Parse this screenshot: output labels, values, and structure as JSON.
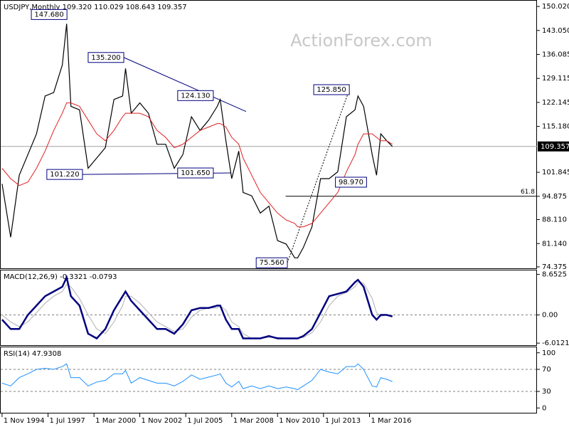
{
  "chart_data": [
    {
      "type": "line",
      "title": "USDJPY,Monthly  109.320 110.029 108.643 109.357",
      "watermark": "ActionForex.com",
      "x": [
        1994.83,
        1995.33,
        1995.83,
        1996.33,
        1996.83,
        1997.33,
        1997.83,
        1998.33,
        1998.58,
        1998.83,
        1999.33,
        1999.83,
        2000.33,
        2000.83,
        2001.33,
        2001.83,
        2002.0,
        2002.33,
        2002.83,
        2003.33,
        2003.83,
        2004.33,
        2004.83,
        2005.33,
        2005.83,
        2006.33,
        2006.83,
        2007.33,
        2007.5,
        2007.83,
        2008.17,
        2008.58,
        2008.83,
        2009.33,
        2009.83,
        2010.33,
        2010.83,
        2011.33,
        2011.83,
        2012.0,
        2012.33,
        2012.83,
        2013.33,
        2013.83,
        2014.33,
        2014.83,
        2015.33,
        2015.5,
        2015.83,
        2016.33,
        2016.58,
        2016.83,
        2017.17,
        2017.5
      ],
      "series": [
        {
          "name": "Close",
          "color": "#000000",
          "values": [
            98.5,
            83,
            101,
            107,
            113,
            124,
            125,
            133,
            145,
            121,
            120,
            103,
            106,
            109,
            123,
            124,
            132,
            119,
            122,
            119,
            110,
            110,
            103,
            107,
            118,
            114,
            117,
            121,
            123,
            111,
            100,
            108,
            96,
            95,
            90,
            92,
            82,
            81,
            77,
            77,
            80,
            86,
            100,
            100,
            102,
            118,
            120,
            124,
            121,
            107,
            101,
            113,
            111,
            109.357
          ]
        },
        {
          "name": "MA",
          "color": "#e02020",
          "values": [
            103,
            100,
            98,
            99,
            103,
            108,
            114,
            119,
            122,
            122,
            121,
            117,
            113,
            111,
            114,
            118,
            119,
            119,
            119,
            118,
            114,
            112,
            109,
            110,
            112,
            114,
            115,
            116,
            116,
            115,
            112,
            110,
            106,
            101,
            96,
            93,
            90,
            88,
            87,
            86,
            86,
            87,
            90,
            93,
            96,
            102,
            107,
            110,
            113,
            113,
            112,
            111,
            111,
            110
          ]
        }
      ],
      "ylim": [
        73.75,
        151.69
      ],
      "yticks": [
        {
          "value": 150.02,
          "label": "150.020"
        },
        {
          "value": 143.05,
          "label": "143.050"
        },
        {
          "value": 136.085,
          "label": "136.085"
        },
        {
          "value": 129.115,
          "label": "129.115"
        },
        {
          "value": 122.145,
          "label": "122.145"
        },
        {
          "value": 115.18,
          "label": "115.180"
        },
        {
          "value": 101.845,
          "label": "101.845"
        },
        {
          "value": 94.875,
          "label": "94.875"
        },
        {
          "value": 88.11,
          "label": "88.110"
        },
        {
          "value": 81.14,
          "label": "81.140"
        },
        {
          "value": 74.375,
          "label": "74.375"
        }
      ],
      "price_line": {
        "value": 109.357,
        "label": "109.357"
      },
      "fib": {
        "ratio": 61.8,
        "price": 94.9,
        "x_start": 2011.3
      },
      "annotations": [
        {
          "x": 1998.6,
          "value": 147.68,
          "label": "147.680"
        },
        {
          "x": 2001.9,
          "value": 135.2,
          "label": "135.200"
        },
        {
          "x": 2007.1,
          "value": 124.13,
          "label": "124.130"
        },
        {
          "x": 1999.5,
          "value": 101.22,
          "label": "101.220"
        },
        {
          "x": 2007.1,
          "value": 101.65,
          "label": "101.650"
        },
        {
          "x": 2015.0,
          "value": 125.85,
          "label": "125.850"
        },
        {
          "x": 2016.0,
          "value": 98.97,
          "label": "98.970"
        },
        {
          "x": 2011.4,
          "value": 75.56,
          "label": "75.560"
        }
      ],
      "trendlines": [
        {
          "x": [
            2001.9,
            2009.0
          ],
          "y": [
            135.2,
            119.5
          ],
          "style": "solid",
          "color": "#000080"
        },
        {
          "x": [
            1999.5,
            2008.1
          ],
          "y": [
            101.22,
            101.65
          ],
          "style": "solid",
          "color": "#000080"
        },
        {
          "x": [
            2011.4,
            2015.0
          ],
          "y": [
            75.56,
            125.85
          ],
          "style": "dotted",
          "color": "#000000"
        }
      ]
    },
    {
      "type": "line",
      "title": "MACD(12,26,9) -0.3321 -0.0793",
      "x": [
        1994.83,
        1995.33,
        1995.83,
        1996.33,
        1996.83,
        1997.33,
        1997.83,
        1998.33,
        1998.58,
        1998.83,
        1999.33,
        1999.83,
        2000.33,
        2000.83,
        2001.33,
        2001.83,
        2002.0,
        2002.33,
        2002.83,
        2003.33,
        2003.83,
        2004.33,
        2004.83,
        2005.33,
        2005.83,
        2006.33,
        2006.83,
        2007.33,
        2007.5,
        2007.83,
        2008.17,
        2008.58,
        2008.83,
        2009.33,
        2009.83,
        2010.33,
        2010.83,
        2011.33,
        2011.83,
        2012.0,
        2012.33,
        2012.83,
        2013.33,
        2013.83,
        2014.33,
        2014.83,
        2015.33,
        2015.5,
        2015.83,
        2016.33,
        2016.58,
        2016.83,
        2017.17,
        2017.5
      ],
      "series": [
        {
          "name": "Signal",
          "color": "#b0b0b0",
          "values": [
            0,
            -1.5,
            -2.5,
            -1.5,
            0.5,
            2.5,
            4,
            5,
            6.5,
            6,
            3.5,
            0,
            -3,
            -4,
            -1.5,
            2,
            4,
            4,
            2.5,
            0.5,
            -1.5,
            -2.5,
            -3.5,
            -3,
            -0.5,
            1,
            1.5,
            1.5,
            2,
            1,
            -1.5,
            -2.5,
            -4,
            -5,
            -5,
            -4.8,
            -4.8,
            -5,
            -5,
            -5,
            -4.8,
            -3.8,
            -1.5,
            2,
            4,
            4.8,
            6,
            7,
            6.8,
            3.5,
            0.5,
            -0.3,
            0,
            -0.0793
          ]
        },
        {
          "name": "MACD",
          "color": "#000080",
          "values": [
            -1,
            -3,
            -3,
            0,
            2,
            4,
            5,
            6,
            8,
            4,
            2,
            -4,
            -5,
            -3,
            1,
            4,
            5,
            3,
            1,
            -1,
            -3,
            -3,
            -4,
            -2,
            1,
            1.5,
            1.5,
            2,
            2,
            -1,
            -3,
            -3,
            -5,
            -5,
            -5,
            -4.5,
            -5,
            -5,
            -5,
            -5,
            -4.5,
            -3,
            0.5,
            4,
            4.5,
            5,
            7,
            7.5,
            6,
            0,
            -1,
            0,
            0,
            -0.3321
          ]
        }
      ],
      "ylim": [
        -6.6,
        9.5
      ],
      "yticks": [
        {
          "value": 8.6525,
          "label": "8.6525"
        },
        {
          "value": -6.0121,
          "label": "-6.0121"
        }
      ],
      "levels": [
        {
          "value": 0,
          "label": "0.00"
        }
      ]
    },
    {
      "type": "line",
      "title": "RSI(14) 47.9308",
      "x": [
        1994.83,
        1995.33,
        1995.83,
        1996.33,
        1996.83,
        1997.33,
        1997.83,
        1998.33,
        1998.58,
        1998.83,
        1999.33,
        1999.83,
        2000.33,
        2000.83,
        2001.33,
        2001.83,
        2002.0,
        2002.33,
        2002.83,
        2003.33,
        2003.83,
        2004.33,
        2004.83,
        2005.33,
        2005.83,
        2006.33,
        2006.83,
        2007.33,
        2007.5,
        2007.83,
        2008.17,
        2008.58,
        2008.83,
        2009.33,
        2009.83,
        2010.33,
        2010.83,
        2011.33,
        2011.83,
        2012.0,
        2012.33,
        2012.83,
        2013.33,
        2013.83,
        2014.33,
        2014.83,
        2015.33,
        2015.5,
        2015.83,
        2016.33,
        2016.58,
        2016.83,
        2017.17,
        2017.5
      ],
      "series": [
        {
          "name": "RSI",
          "color": "#1e90ff",
          "values": [
            45,
            40,
            55,
            62,
            70,
            72,
            70,
            75,
            80,
            55,
            55,
            40,
            47,
            50,
            62,
            62,
            68,
            45,
            55,
            50,
            45,
            45,
            40,
            48,
            60,
            52,
            56,
            60,
            62,
            45,
            38,
            48,
            35,
            40,
            35,
            40,
            35,
            38,
            35,
            33,
            40,
            50,
            70,
            65,
            62,
            75,
            75,
            80,
            70,
            40,
            38,
            55,
            52,
            47.9308
          ]
        }
      ],
      "ylim": [
        -10,
        110
      ],
      "yticks": [
        100,
        0
      ],
      "levels": [
        70,
        30
      ],
      "xlim": [
        1994.71,
        2025.9
      ],
      "xticks": [
        {
          "value": 1994.83,
          "label": "1 Nov 1994"
        },
        {
          "value": 1997.5,
          "label": "1 Jul 1997"
        },
        {
          "value": 2000.17,
          "label": "1 Mar 2000"
        },
        {
          "value": 2002.83,
          "label": "1 Nov 2002"
        },
        {
          "value": 2005.5,
          "label": "1 Jul 2005"
        },
        {
          "value": 2008.17,
          "label": "1 Mar 2008"
        },
        {
          "value": 2010.83,
          "label": "1 Nov 2010"
        },
        {
          "value": 2013.5,
          "label": "1 Jul 2013"
        },
        {
          "value": 2016.17,
          "label": "1 Mar 2016"
        }
      ]
    }
  ]
}
